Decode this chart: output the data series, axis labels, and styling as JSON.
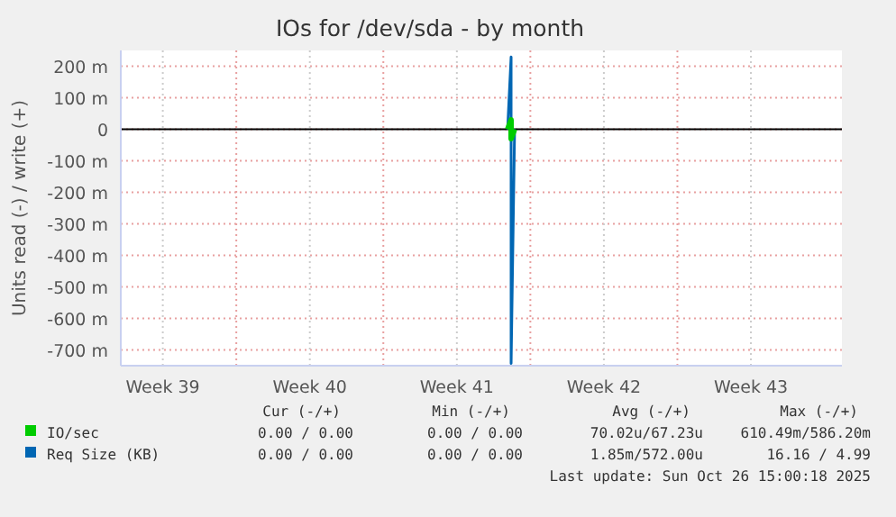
{
  "chart_data": {
    "type": "line",
    "title": "IOs for /dev/sda - by month",
    "ylabel": "Units read (-) / write (+)",
    "xlim": [
      "2025-09-23T12:00",
      "2025-10-27T20:00"
    ],
    "xticks": [
      {
        "value": "2025-09-25T12:00",
        "label": "Week 39"
      },
      {
        "value": "2025-09-29",
        "label": null
      },
      {
        "value": "2025-10-02T12:00",
        "label": "Week 40"
      },
      {
        "value": "2025-10-06",
        "label": null
      },
      {
        "value": "2025-10-09T12:00",
        "label": "Week 41"
      },
      {
        "value": "2025-10-13",
        "label": null
      },
      {
        "value": "2025-10-16T12:00",
        "label": "Week 42"
      },
      {
        "value": "2025-10-20",
        "label": null
      },
      {
        "value": "2025-10-23T12:00",
        "label": "Week 43"
      }
    ],
    "ylim": [
      -750,
      250
    ],
    "yticks": [
      {
        "value": 200,
        "label": "200 m"
      },
      {
        "value": 100,
        "label": "100 m"
      },
      0,
      {
        "value": -100,
        "label": "-100 m"
      },
      {
        "value": -200,
        "label": "-200 m"
      },
      {
        "value": -300,
        "label": "-300 m"
      },
      {
        "value": -400,
        "label": "-400 m"
      },
      {
        "value": -500,
        "label": "-500 m"
      },
      {
        "value": -600,
        "label": "-600 m"
      },
      {
        "value": -700,
        "label": "-700 m"
      }
    ],
    "grid": true,
    "legend": "bottom left",
    "ref_lines": [
      {
        "axis": "y",
        "value": 0,
        "color": "#000000"
      }
    ],
    "series": [
      {
        "name": "IO/sec",
        "color": "#00cc00",
        "x": [
          "2025-10-11T22:00",
          "2025-10-12T02:00",
          "2025-10-12T02:00",
          "2025-10-12T06:00"
        ],
        "values": [
          0,
          30,
          -30,
          0
        ]
      },
      {
        "name": "Req Size (KB)",
        "color": "#0066b3",
        "x": [
          "2025-10-11T22:00",
          "2025-10-12T02:00",
          "2025-10-12T02:00",
          "2025-10-12T06:00"
        ],
        "values": [
          0,
          229,
          -743,
          0
        ]
      }
    ],
    "annotations": [
      "Cur (-/+)",
      "Min (-/+)",
      "Avg (-/+)",
      "Max (-/+)",
      "0.00 / 0.00",
      "0.00 / 0.00",
      "70.02u/67.23u",
      "610.49m/586.20m",
      "0.00 / 0.00",
      "0.00 / 0.00",
      "1.85m/572.00u",
      "16.16 / 4.99",
      "Last update: Sun Oct 26 15:00:18 2025"
    ]
  }
}
